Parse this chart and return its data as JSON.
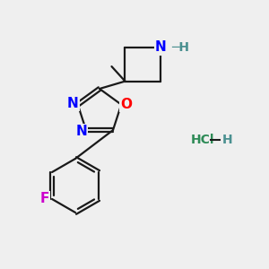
{
  "bg_color": "#efefef",
  "bond_color": "#1a1a1a",
  "bond_width": 1.6,
  "atom_colors": {
    "N": "#0000ff",
    "O": "#ff0000",
    "F": "#cc00cc",
    "NH": "#0000ff",
    "H_nh": "#4a9090",
    "Cl": "#2e8b57",
    "H_hcl": "#2e8b57"
  },
  "font_size_atom": 11,
  "font_size_hcl": 10,
  "font_size_h": 10
}
